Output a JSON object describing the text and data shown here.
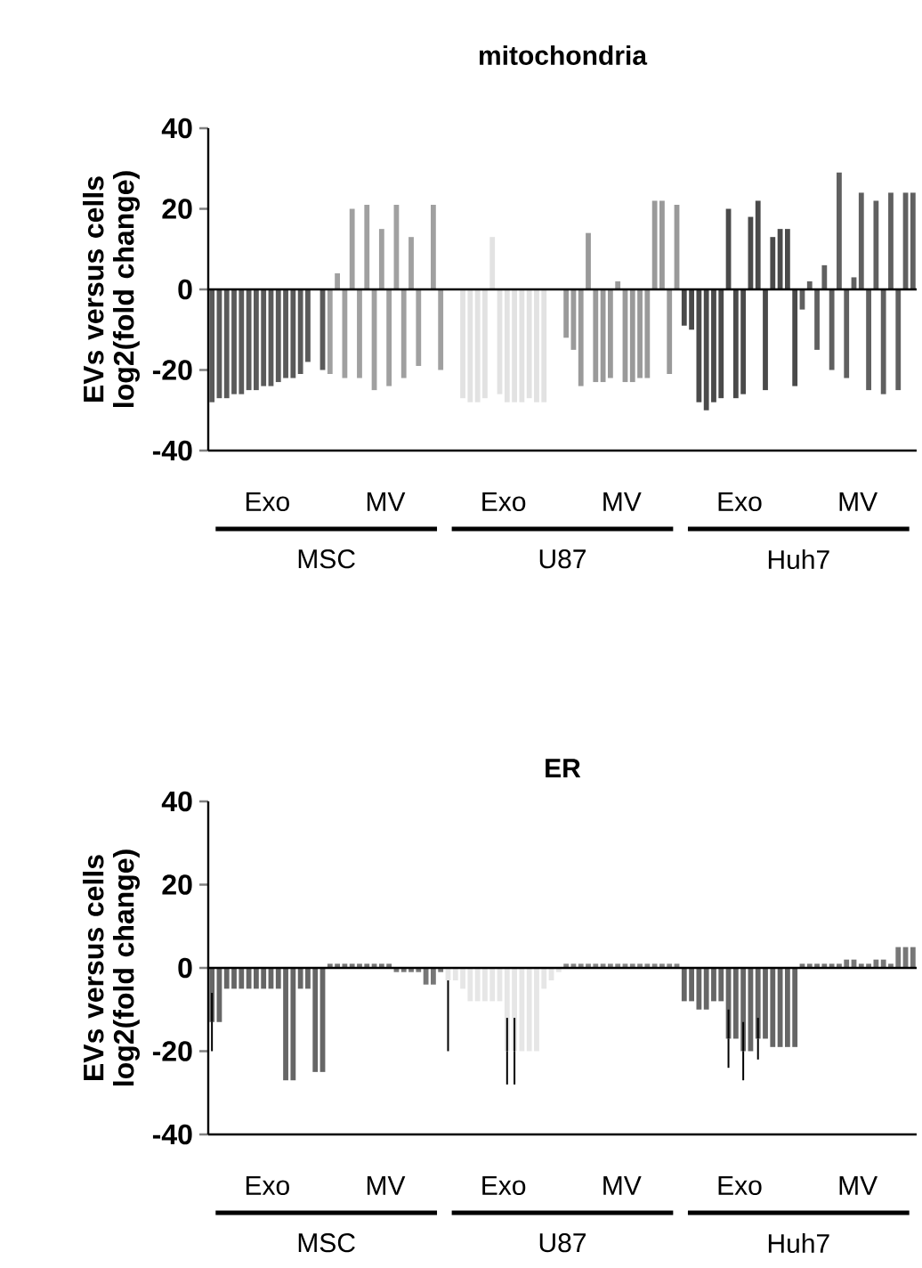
{
  "chart_data": [
    {
      "type": "bar",
      "title": "mitochondria",
      "ylabel": "EVs versus cells log2(fold change)",
      "categories": [
        null,
        null,
        null,
        null,
        null,
        null,
        null,
        null,
        null,
        null,
        null,
        null,
        null,
        null,
        null,
        null,
        null,
        null,
        null,
        null,
        null,
        null,
        null,
        null,
        null,
        null,
        null,
        null,
        null,
        null,
        null,
        null,
        null,
        null,
        null,
        null,
        null,
        null,
        null,
        null,
        null,
        null,
        null,
        null,
        null,
        null,
        null,
        null,
        null,
        null,
        null,
        null,
        null,
        null,
        null,
        null,
        null,
        null,
        null,
        null,
        null,
        null,
        null,
        null,
        null,
        null,
        null,
        null,
        null,
        null,
        null,
        null,
        null,
        null,
        null,
        null,
        null,
        null,
        null,
        null,
        null,
        null,
        null,
        null,
        null,
        null,
        null,
        null,
        null,
        null,
        null,
        null,
        null,
        null,
        null,
        null
      ],
      "values": [
        -28,
        -27,
        -27,
        -26,
        -26,
        -25,
        -25,
        -24,
        -24,
        -23,
        -22,
        -22,
        -21,
        -18,
        null,
        -20,
        -21,
        4,
        -22,
        20,
        -22,
        21,
        -25,
        15,
        -24,
        21,
        -22,
        13,
        -19,
        null,
        21,
        -20,
        null,
        null,
        -27,
        -28,
        -28,
        -27,
        13,
        -26,
        -28,
        -28,
        -28,
        -27,
        -28,
        -28,
        null,
        null,
        -12,
        -15,
        -24,
        14,
        -23,
        -23,
        -22,
        2,
        -23,
        -23,
        -22,
        -22,
        22,
        22,
        -21,
        21,
        -9,
        -10,
        -28,
        -30,
        -28,
        -27,
        20,
        -27,
        -26,
        18,
        22,
        -25,
        13,
        15,
        15,
        -24,
        -5,
        2,
        -15,
        6,
        -20,
        29,
        -22,
        3,
        24,
        -25,
        22,
        -26,
        24,
        -25,
        24,
        24
      ],
      "colors": [
        "#5a5a5a",
        "#5a5a5a",
        "#5a5a5a",
        "#5a5a5a",
        "#5a5a5a",
        "#5a5a5a",
        "#5a5a5a",
        "#5a5a5a",
        "#5a5a5a",
        "#5a5a5a",
        "#5a5a5a",
        "#5a5a5a",
        "#5a5a5a",
        "#5a5a5a",
        "#5a5a5a",
        "#5a5a5a",
        "#a0a0a0",
        "#a0a0a0",
        "#a0a0a0",
        "#a0a0a0",
        "#a0a0a0",
        "#a0a0a0",
        "#a0a0a0",
        "#a0a0a0",
        "#a0a0a0",
        "#a0a0a0",
        "#a0a0a0",
        "#a0a0a0",
        "#a0a0a0",
        "#a0a0a0",
        "#a0a0a0",
        "#a0a0a0",
        "#e2e2e2",
        "#e2e2e2",
        "#e2e2e2",
        "#e2e2e2",
        "#e2e2e2",
        "#e2e2e2",
        "#e2e2e2",
        "#e2e2e2",
        "#e2e2e2",
        "#e2e2e2",
        "#e2e2e2",
        "#e2e2e2",
        "#e2e2e2",
        "#e2e2e2",
        "#e2e2e2",
        "#e2e2e2",
        "#9a9a9a",
        "#9a9a9a",
        "#9a9a9a",
        "#9a9a9a",
        "#9a9a9a",
        "#9a9a9a",
        "#9a9a9a",
        "#9a9a9a",
        "#9a9a9a",
        "#9a9a9a",
        "#9a9a9a",
        "#9a9a9a",
        "#9a9a9a",
        "#9a9a9a",
        "#9a9a9a",
        "#9a9a9a",
        "#4a4a4a",
        "#4a4a4a",
        "#4a4a4a",
        "#4a4a4a",
        "#4a4a4a",
        "#4a4a4a",
        "#4a4a4a",
        "#4a4a4a",
        "#4a4a4a",
        "#4a4a4a",
        "#4a4a4a",
        "#4a4a4a",
        "#4a4a4a",
        "#4a4a4a",
        "#4a4a4a",
        "#4a4a4a",
        "#606060",
        "#606060",
        "#606060",
        "#606060",
        "#606060",
        "#606060",
        "#606060",
        "#606060",
        "#606060",
        "#606060",
        "#606060",
        "#606060",
        "#606060",
        "#606060",
        "#606060",
        "#606060"
      ],
      "ylim": [
        -40,
        40
      ],
      "yticks": [
        -40,
        -20,
        0,
        20,
        40
      ],
      "annotations": [
        "Exo",
        "MV",
        "Exo",
        "MV",
        "Exo",
        "MV",
        "MSC",
        "U87",
        "Huh7"
      ]
    },
    {
      "type": "bar",
      "title": "ER",
      "ylabel": "EVs versus cells log2(fold change)",
      "categories": [
        null,
        null,
        null,
        null,
        null,
        null,
        null,
        null,
        null,
        null,
        null,
        null,
        null,
        null,
        null,
        null,
        null,
        null,
        null,
        null,
        null,
        null,
        null,
        null,
        null,
        null,
        null,
        null,
        null,
        null,
        null,
        null,
        null,
        null,
        null,
        null,
        null,
        null,
        null,
        null,
        null,
        null,
        null,
        null,
        null,
        null,
        null,
        null,
        null,
        null,
        null,
        null,
        null,
        null,
        null,
        null,
        null,
        null,
        null,
        null,
        null,
        null,
        null,
        null,
        null,
        null,
        null,
        null,
        null,
        null,
        null,
        null,
        null,
        null,
        null,
        null,
        null,
        null,
        null,
        null,
        null,
        null,
        null,
        null,
        null,
        null,
        null,
        null,
        null,
        null,
        null,
        null,
        null,
        null,
        null,
        null
      ],
      "values": [
        -13,
        -13,
        -5,
        -5,
        -5,
        -5,
        -5,
        -5,
        -5,
        -5,
        -27,
        -27,
        -5,
        -5,
        -25,
        -25,
        1,
        1,
        1,
        1,
        1,
        1,
        1,
        1,
        1,
        -1,
        -1,
        -1,
        -1,
        -4,
        -4,
        -1,
        -3,
        -3,
        -5,
        -8,
        -8,
        -8,
        -8,
        -8,
        -20,
        -20,
        -20,
        -20,
        -20,
        -5,
        -3,
        -1,
        1,
        1,
        1,
        1,
        1,
        1,
        1,
        1,
        1,
        1,
        1,
        1,
        1,
        1,
        1,
        1,
        -8,
        -8,
        -10,
        -10,
        -8,
        -8,
        -17,
        -17,
        -20,
        -20,
        -17,
        -17,
        -19,
        -19,
        -19,
        -19,
        1,
        1,
        1,
        1,
        1,
        1,
        2,
        2,
        1,
        1,
        2,
        2,
        1,
        5,
        5,
        5
      ],
      "errors": [
        7,
        null,
        null,
        null,
        null,
        null,
        null,
        null,
        null,
        null,
        null,
        null,
        null,
        null,
        null,
        null,
        null,
        null,
        null,
        null,
        null,
        null,
        null,
        null,
        null,
        null,
        null,
        null,
        null,
        null,
        null,
        null,
        [
          -20,
          -3
        ],
        null,
        null,
        null,
        null,
        null,
        null,
        null,
        8,
        8,
        null,
        null,
        null,
        null,
        null,
        null,
        null,
        null,
        null,
        null,
        null,
        null,
        null,
        null,
        null,
        null,
        null,
        null,
        null,
        null,
        null,
        null,
        null,
        null,
        null,
        null,
        null,
        null,
        7,
        null,
        7,
        null,
        5,
        null,
        null,
        null,
        null,
        null,
        null,
        null,
        null,
        null,
        null,
        null,
        null,
        null,
        null,
        null,
        null,
        null,
        null,
        null,
        null,
        null
      ],
      "colors": [
        "#666666",
        "#666666",
        "#666666",
        "#666666",
        "#666666",
        "#666666",
        "#666666",
        "#666666",
        "#666666",
        "#666666",
        "#666666",
        "#666666",
        "#666666",
        "#666666",
        "#666666",
        "#666666",
        "#777777",
        "#777777",
        "#777777",
        "#777777",
        "#777777",
        "#777777",
        "#777777",
        "#777777",
        "#777777",
        "#777777",
        "#777777",
        "#777777",
        "#777777",
        "#777777",
        "#777777",
        "#777777",
        "#e6e6e6",
        "#e6e6e6",
        "#e6e6e6",
        "#e6e6e6",
        "#e6e6e6",
        "#e6e6e6",
        "#e6e6e6",
        "#e6e6e6",
        "#e6e6e6",
        "#e6e6e6",
        "#e6e6e6",
        "#e6e6e6",
        "#e6e6e6",
        "#e6e6e6",
        "#e6e6e6",
        "#e6e6e6",
        "#888888",
        "#888888",
        "#888888",
        "#888888",
        "#888888",
        "#888888",
        "#888888",
        "#888888",
        "#888888",
        "#888888",
        "#888888",
        "#888888",
        "#888888",
        "#888888",
        "#888888",
        "#888888",
        "#666666",
        "#666666",
        "#666666",
        "#666666",
        "#666666",
        "#666666",
        "#666666",
        "#666666",
        "#666666",
        "#666666",
        "#666666",
        "#666666",
        "#666666",
        "#666666",
        "#666666",
        "#666666",
        "#777777",
        "#777777",
        "#777777",
        "#777777",
        "#777777",
        "#777777",
        "#777777",
        "#777777",
        "#777777",
        "#777777",
        "#777777",
        "#777777",
        "#777777",
        "#777777",
        "#777777",
        "#777777"
      ],
      "ylim": [
        -40,
        40
      ],
      "yticks": [
        -40,
        -20,
        0,
        20,
        40
      ],
      "annotations": [
        "Exo",
        "MV",
        "Exo",
        "MV",
        "Exo",
        "MV",
        "MSC",
        "U87",
        "Huh7"
      ]
    }
  ]
}
